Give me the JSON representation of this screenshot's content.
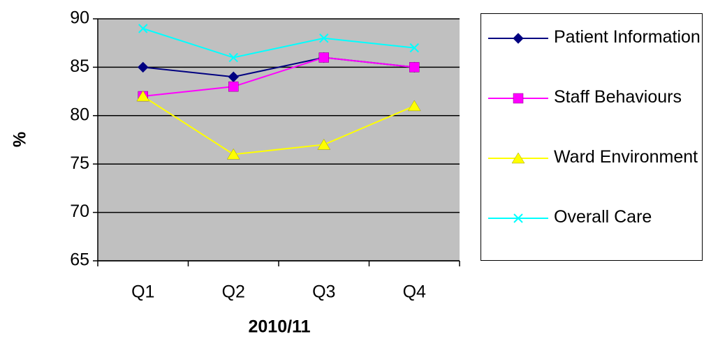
{
  "chart_data": {
    "type": "line",
    "x_label": "2010/11",
    "y_label": "%",
    "categories": [
      "Q1",
      "Q2",
      "Q3",
      "Q4"
    ],
    "series": [
      {
        "name": "Patient Information",
        "color": "#000080",
        "marker": "diamond",
        "values": [
          85,
          84,
          86,
          85
        ]
      },
      {
        "name": "Staff Behaviours",
        "color": "#ff00ff",
        "marker": "square",
        "values": [
          82,
          83,
          86,
          85
        ]
      },
      {
        "name": "Ward Environment",
        "color": "#ffff00",
        "marker": "triangle",
        "values": [
          82,
          76,
          77,
          81
        ]
      },
      {
        "name": "Overall Care",
        "color": "#00ffff",
        "marker": "x",
        "values": [
          89,
          86,
          88,
          87
        ]
      }
    ],
    "ylim": [
      65,
      90
    ],
    "yticks": [
      65,
      70,
      75,
      80,
      85,
      90
    ],
    "grid": true,
    "plot_background": "#c0c0c0"
  }
}
